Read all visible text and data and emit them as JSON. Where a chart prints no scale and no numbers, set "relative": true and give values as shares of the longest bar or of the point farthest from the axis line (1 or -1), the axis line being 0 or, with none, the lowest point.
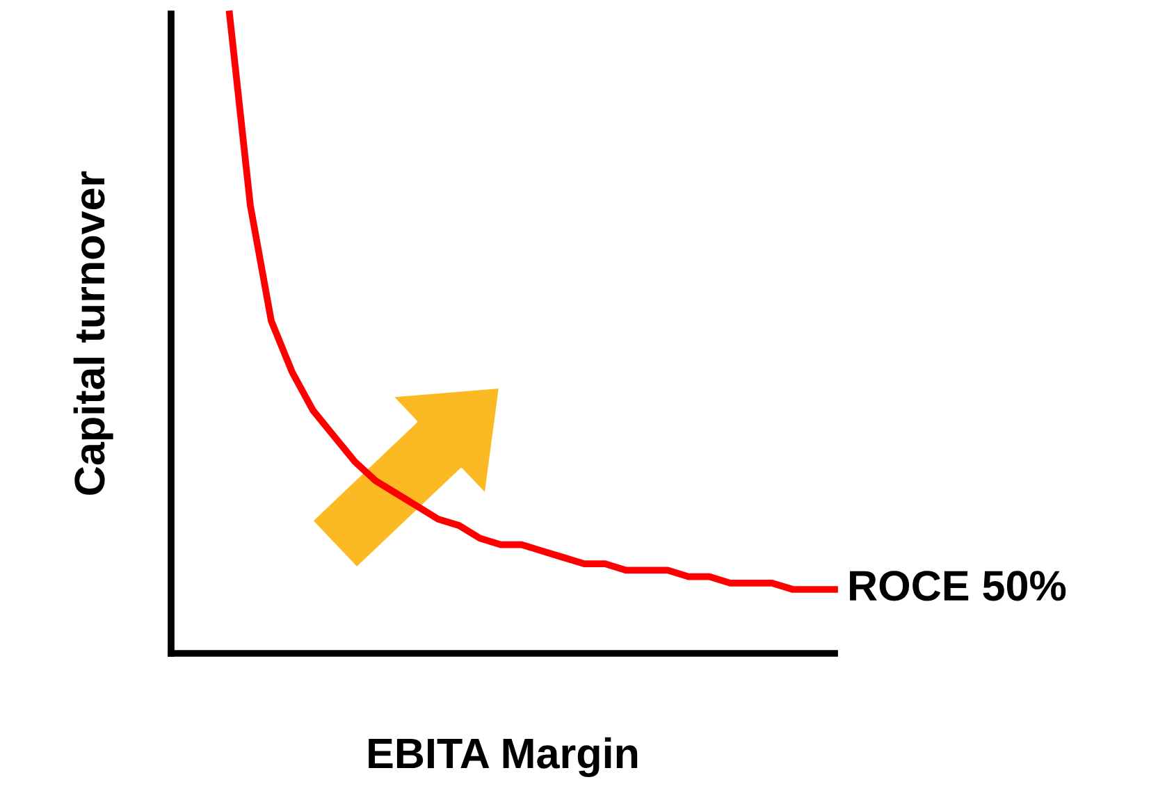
{
  "chart_data": {
    "type": "line",
    "relative": true,
    "xlabel": "EBITA Margin",
    "ylabel": "Capital turnover",
    "categories": [
      null,
      null,
      null,
      null,
      null,
      null,
      null,
      null,
      null,
      null,
      null,
      null,
      null,
      null,
      null,
      null,
      null,
      null,
      null,
      null,
      null,
      null,
      null,
      null,
      null,
      null,
      null,
      null,
      null,
      null
    ],
    "series": [
      {
        "name": "ROCE 50%",
        "color": "#ff0000",
        "values": [
          1.0,
          0.7,
          0.52,
          0.44,
          0.38,
          0.34,
          0.3,
          0.27,
          0.25,
          0.23,
          0.21,
          0.2,
          0.18,
          0.17,
          0.17,
          0.16,
          0.15,
          0.14,
          0.14,
          0.13,
          0.13,
          0.13,
          0.12,
          0.12,
          0.11,
          0.11,
          0.11,
          0.1,
          0.1,
          0.1
        ]
      }
    ],
    "grid": false,
    "legend": false,
    "marker": "none",
    "line_style": "solid"
  }
}
